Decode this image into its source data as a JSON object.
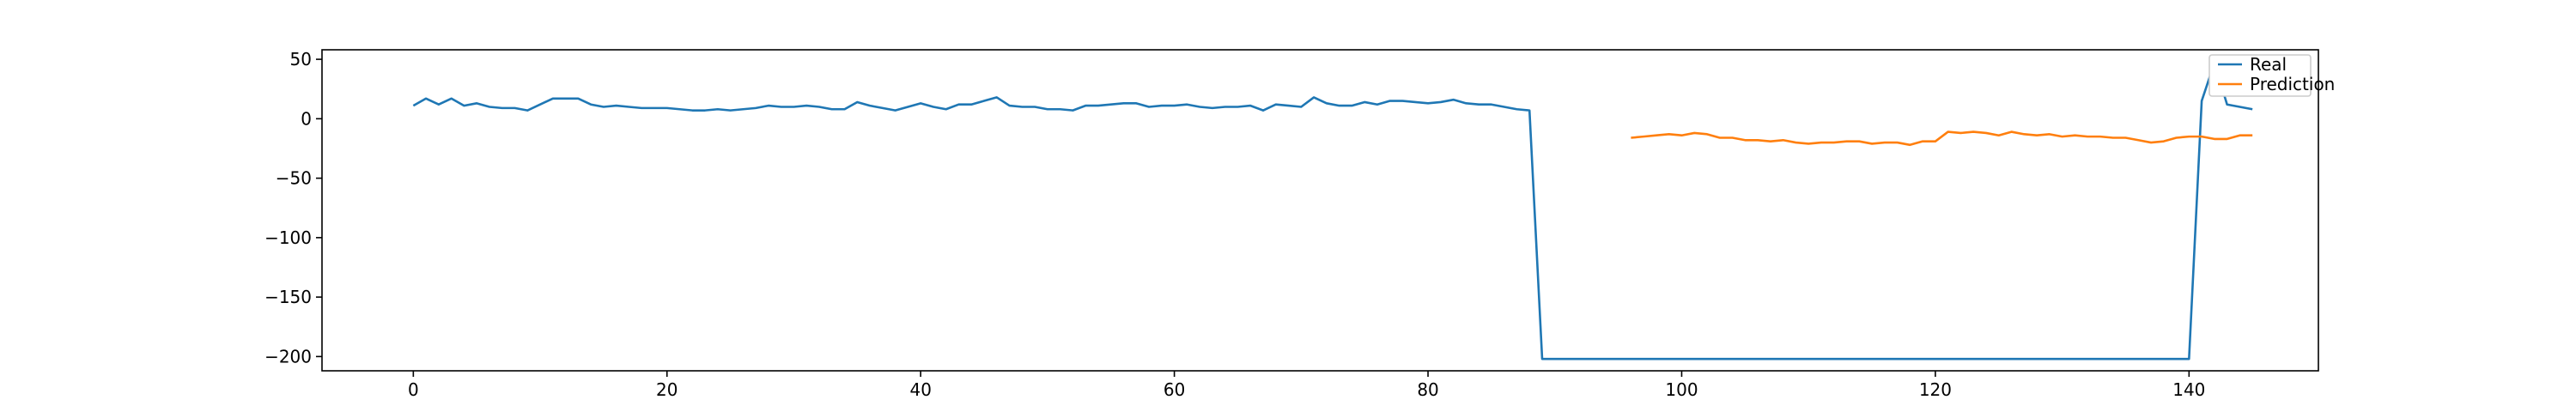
{
  "chart_data": {
    "type": "line",
    "title": "",
    "xlabel": "",
    "ylabel": "",
    "xlim": [
      -7.2,
      150.2
    ],
    "ylim": [
      -212,
      58
    ],
    "grid": false,
    "legend_position": "top-right",
    "x_ticks": [
      0,
      20,
      40,
      60,
      80,
      100,
      120,
      140
    ],
    "y_ticks": [
      50,
      0,
      -50,
      -100,
      -150,
      -200
    ],
    "x_tick_labels": [
      "0",
      "20",
      "40",
      "60",
      "80",
      "100",
      "120",
      "140"
    ],
    "y_tick_labels": [
      "50",
      "0",
      "−50",
      "−100",
      "−150",
      "−200"
    ],
    "colors": {
      "Real": "#1f77b4",
      "Prediction": "#ff7f0e"
    },
    "series": [
      {
        "name": "Real",
        "x_start": 0,
        "values": [
          11,
          17,
          12,
          17,
          11,
          13,
          10,
          9,
          9,
          7,
          12,
          17,
          17,
          17,
          12,
          10,
          11,
          10,
          9,
          9,
          9,
          8,
          7,
          7,
          8,
          7,
          8,
          9,
          11,
          10,
          10,
          11,
          10,
          8,
          8,
          14,
          11,
          9,
          7,
          10,
          13,
          10,
          8,
          12,
          12,
          15,
          18,
          11,
          10,
          10,
          8,
          8,
          7,
          11,
          11,
          12,
          13,
          13,
          10,
          11,
          11,
          12,
          10,
          9,
          10,
          10,
          11,
          7,
          12,
          11,
          10,
          18,
          13,
          11,
          11,
          14,
          12,
          15,
          15,
          14,
          13,
          14,
          16,
          13,
          12,
          12,
          10,
          8,
          7,
          -202,
          -202,
          -202,
          -202,
          -202,
          -202,
          -202,
          -202,
          -202,
          -202,
          -202,
          -202,
          -202,
          -202,
          -202,
          -202,
          -202,
          -202,
          -202,
          -202,
          -202,
          -202,
          -202,
          -202,
          -202,
          -202,
          -202,
          -202,
          -202,
          -202,
          -202,
          -202,
          -202,
          -202,
          -202,
          -202,
          -202,
          -202,
          -202,
          -202,
          -202,
          -202,
          -202,
          -202,
          -202,
          -202,
          -202,
          -202,
          -202,
          -202,
          -202,
          -202,
          15,
          47,
          12,
          10,
          8
        ]
      },
      {
        "name": "Prediction",
        "x_start": 96,
        "values": [
          -16,
          -15,
          -14,
          -13,
          -14,
          -12,
          -13,
          -16,
          -16,
          -18,
          -18,
          -19,
          -18,
          -20,
          -21,
          -20,
          -20,
          -19,
          -19,
          -21,
          -20,
          -20,
          -22,
          -19,
          -19,
          -11,
          -12,
          -11,
          -12,
          -14,
          -11,
          -13,
          -14,
          -13,
          -15,
          -14,
          -15,
          -15,
          -16,
          -16,
          -18,
          -20,
          -19,
          -16,
          -15,
          -15,
          -17,
          -17,
          -14,
          -14
        ]
      }
    ]
  }
}
